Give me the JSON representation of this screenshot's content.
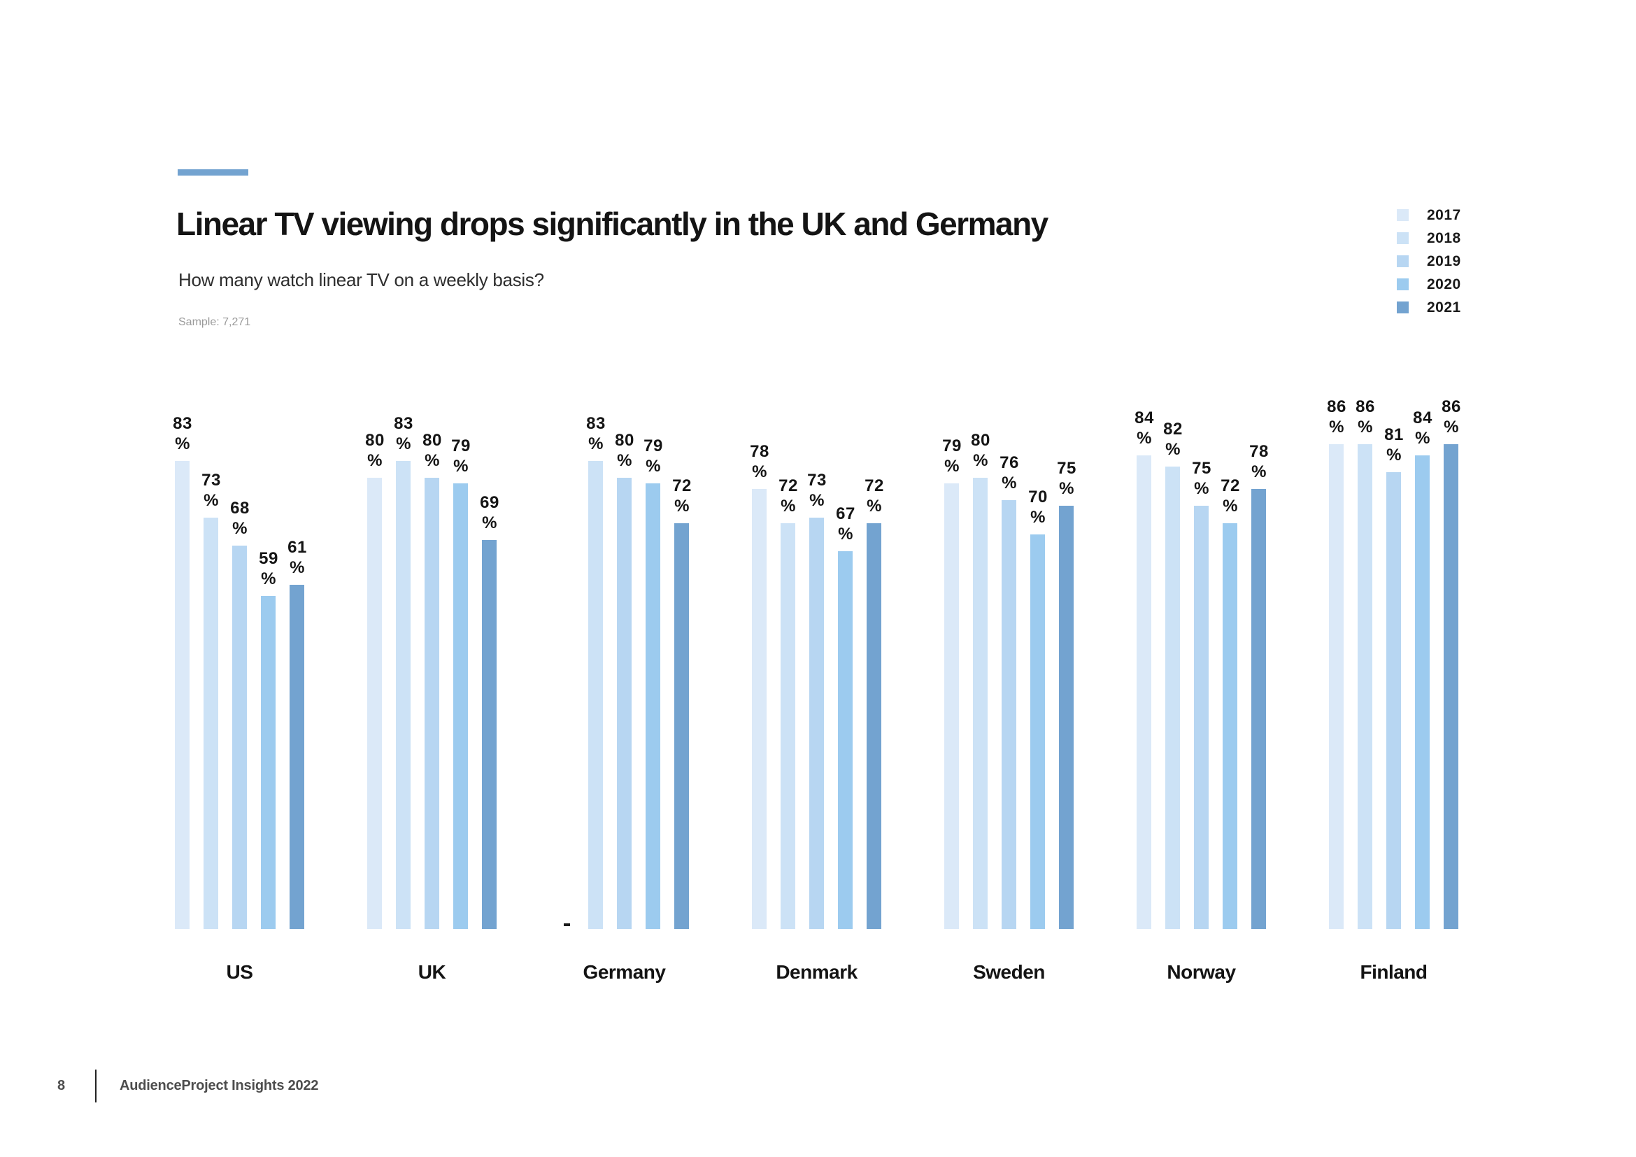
{
  "meta": {
    "accent_color": "#73a3d0",
    "text_color": "#141414",
    "muted_text_color": "#9a9a9a",
    "footer_text_color": "#4d4d4d"
  },
  "header": {
    "title": "Linear TV viewing drops significantly in the UK and Germany",
    "subtitle": "How many watch linear TV on a weekly basis?",
    "sample": "Sample: 7,271"
  },
  "chart_data": {
    "type": "bar",
    "title": "Linear TV viewing drops significantly in the UK and Germany",
    "subtitle": "How many watch linear TV on a weekly basis?",
    "unit": "%",
    "categories": [
      "US",
      "UK",
      "Germany",
      "Denmark",
      "Sweden",
      "Norway",
      "Finland"
    ],
    "series": [
      {
        "name": "2017",
        "color": "#dbe9f8",
        "values": [
          83,
          80,
          null,
          78,
          79,
          84,
          86
        ]
      },
      {
        "name": "2018",
        "color": "#cce2f6",
        "values": [
          73,
          83,
          83,
          72,
          80,
          82,
          86
        ]
      },
      {
        "name": "2019",
        "color": "#b7d6f2",
        "values": [
          68,
          80,
          80,
          73,
          76,
          75,
          81
        ]
      },
      {
        "name": "2020",
        "color": "#9ccbef",
        "values": [
          59,
          79,
          79,
          67,
          70,
          72,
          84
        ]
      },
      {
        "name": "2021",
        "color": "#73a3d0",
        "values": [
          61,
          69,
          72,
          72,
          75,
          78,
          86
        ]
      }
    ],
    "ylim": [
      0,
      100
    ],
    "grid": false,
    "axes_visible": false,
    "value_labels": true,
    "missing_marker": "-",
    "legend_position": "top-right"
  },
  "footer": {
    "page_number": "8",
    "label": "AudienceProject Insights 2022"
  }
}
